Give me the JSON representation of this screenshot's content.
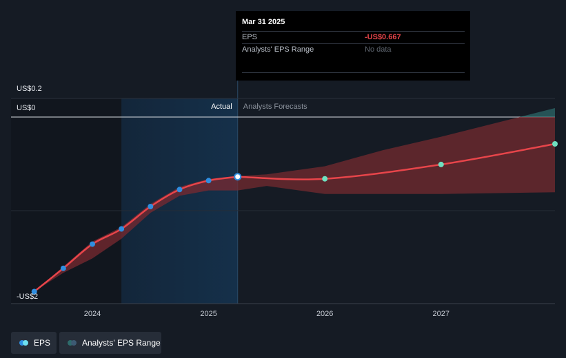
{
  "colors": {
    "background": "#151b24",
    "eps_line": "#e8454a",
    "forecast_band": "#7a2a30",
    "forecast_band_upper": "#2e6b6b",
    "actual_marker": "#2f8ee0",
    "forecast_marker": "#6ee0c0",
    "highlight_panel": "#15304a"
  },
  "tooltip": {
    "date": "Mar 31 2025",
    "eps_label": "EPS",
    "eps_value": "-US$0.667",
    "range_label": "Analysts' EPS Range",
    "range_value": "No data"
  },
  "sections": {
    "actual": "Actual",
    "forecast": "Analysts Forecasts"
  },
  "legend": {
    "eps": {
      "label": "EPS",
      "icon": "eps-dot-icon"
    },
    "range": {
      "label": "Analysts' EPS Range",
      "icon": "range-dot-icon"
    }
  },
  "chart_data": {
    "type": "line",
    "title": "",
    "y_tick_labels": [
      "US$0.2",
      "US$0",
      "-US$2"
    ],
    "y_ticks": [
      0.2,
      0,
      -2
    ],
    "x_tick_labels": [
      "2024",
      "2025",
      "2026",
      "2027"
    ],
    "x_ticks": [
      2024,
      2025,
      2026,
      2027
    ],
    "xlim": [
      2023.3,
      2027.98
    ],
    "highlight_range": [
      2024.25,
      2025.25
    ],
    "split_x": 2025.25,
    "series": [
      {
        "name": "EPS",
        "kind": "actual",
        "points": [
          {
            "x": 2023.5,
            "y": -1.95
          },
          {
            "x": 2023.75,
            "y": -1.69
          },
          {
            "x": 2024.0,
            "y": -1.42
          },
          {
            "x": 2024.25,
            "y": -1.25
          },
          {
            "x": 2024.5,
            "y": -1.0
          },
          {
            "x": 2024.75,
            "y": -0.81
          },
          {
            "x": 2025.0,
            "y": -0.71
          },
          {
            "x": 2025.25,
            "y": -0.667
          }
        ]
      },
      {
        "name": "EPS",
        "kind": "forecast",
        "points": [
          {
            "x": 2025.25,
            "y": -0.667
          },
          {
            "x": 2026.0,
            "y": -0.69
          },
          {
            "x": 2027.0,
            "y": -0.53
          },
          {
            "x": 2027.98,
            "y": -0.3
          }
        ]
      }
    ],
    "range_band": {
      "name": "Analysts' EPS Range",
      "points": [
        {
          "x": 2023.5,
          "upper": -1.95,
          "lower": -1.95
        },
        {
          "x": 2023.75,
          "upper": -1.67,
          "lower": -1.74
        },
        {
          "x": 2024.0,
          "upper": -1.39,
          "lower": -1.58
        },
        {
          "x": 2024.25,
          "upper": -1.23,
          "lower": -1.36
        },
        {
          "x": 2024.5,
          "upper": -0.97,
          "lower": -1.07
        },
        {
          "x": 2024.75,
          "upper": -0.78,
          "lower": -0.88
        },
        {
          "x": 2025.0,
          "upper": -0.69,
          "lower": -0.82
        },
        {
          "x": 2025.25,
          "upper": -0.66,
          "lower": -0.82
        },
        {
          "x": 2025.5,
          "upper": -0.64,
          "lower": -0.77
        },
        {
          "x": 2026.0,
          "upper": -0.55,
          "lower": -0.86
        },
        {
          "x": 2026.5,
          "upper": -0.37,
          "lower": -0.86
        },
        {
          "x": 2027.0,
          "upper": -0.22,
          "lower": -0.86
        },
        {
          "x": 2027.98,
          "upper": 0.1,
          "lower": -0.84
        }
      ]
    }
  }
}
